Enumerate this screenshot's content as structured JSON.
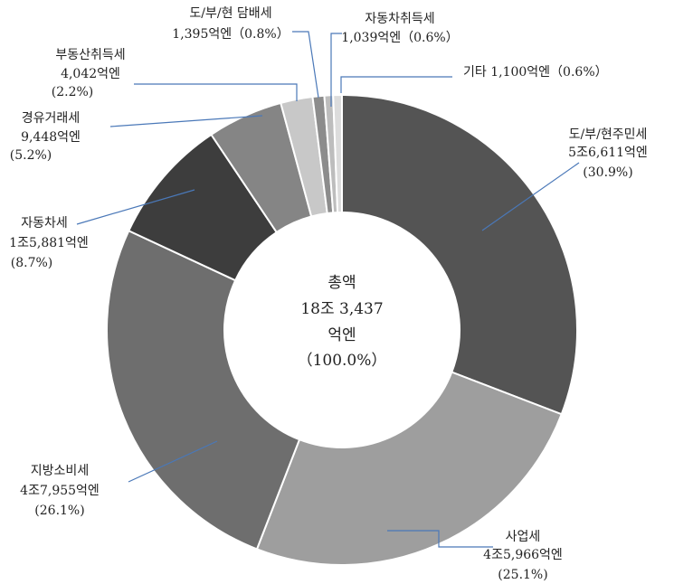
{
  "chart_data": {
    "type": "pie",
    "title": "",
    "center_label": [
      "총액",
      "18조 3,437",
      "억엔",
      "（100.0%）"
    ],
    "slices": [
      {
        "name": "도/부/현주민세",
        "amount": "5조6,611억엔",
        "percent": "(30.9%)",
        "value": 30.9,
        "color": "#545454"
      },
      {
        "name": "사업세",
        "amount": "4조5,966억엔",
        "percent": "(25.1%)",
        "value": 25.1,
        "color": "#9e9e9e"
      },
      {
        "name": "지방소비세",
        "amount": "4조7,955억엔",
        "percent": "(26.1%)",
        "value": 26.1,
        "color": "#6e6e6e"
      },
      {
        "name": "자동차세",
        "amount": "1조5,881억엔",
        "percent": "(8.7%)",
        "value": 8.7,
        "color": "#3d3d3d"
      },
      {
        "name": "경유거래세",
        "amount": "9,448억엔",
        "percent": "(5.2%)",
        "value": 5.2,
        "color": "#858585"
      },
      {
        "name": "부동산취득세",
        "amount": "4,042억엔",
        "percent": "(2.2%)",
        "value": 2.2,
        "color": "#c8c8c8"
      },
      {
        "name": "도/부/현 담배세",
        "amount": "1,395억엔（0.8%）",
        "percent": "",
        "value": 0.8,
        "color": "#8c8c8c"
      },
      {
        "name": "자동차취득세",
        "amount": "1,039억엔（0.6%）",
        "percent": "",
        "value": 0.6,
        "color": "#bdbdbd"
      },
      {
        "name": "기타 1,100억엔（0.6%）",
        "amount": "",
        "percent": "",
        "value": 0.6,
        "color": "#dcdcdc"
      }
    ]
  }
}
